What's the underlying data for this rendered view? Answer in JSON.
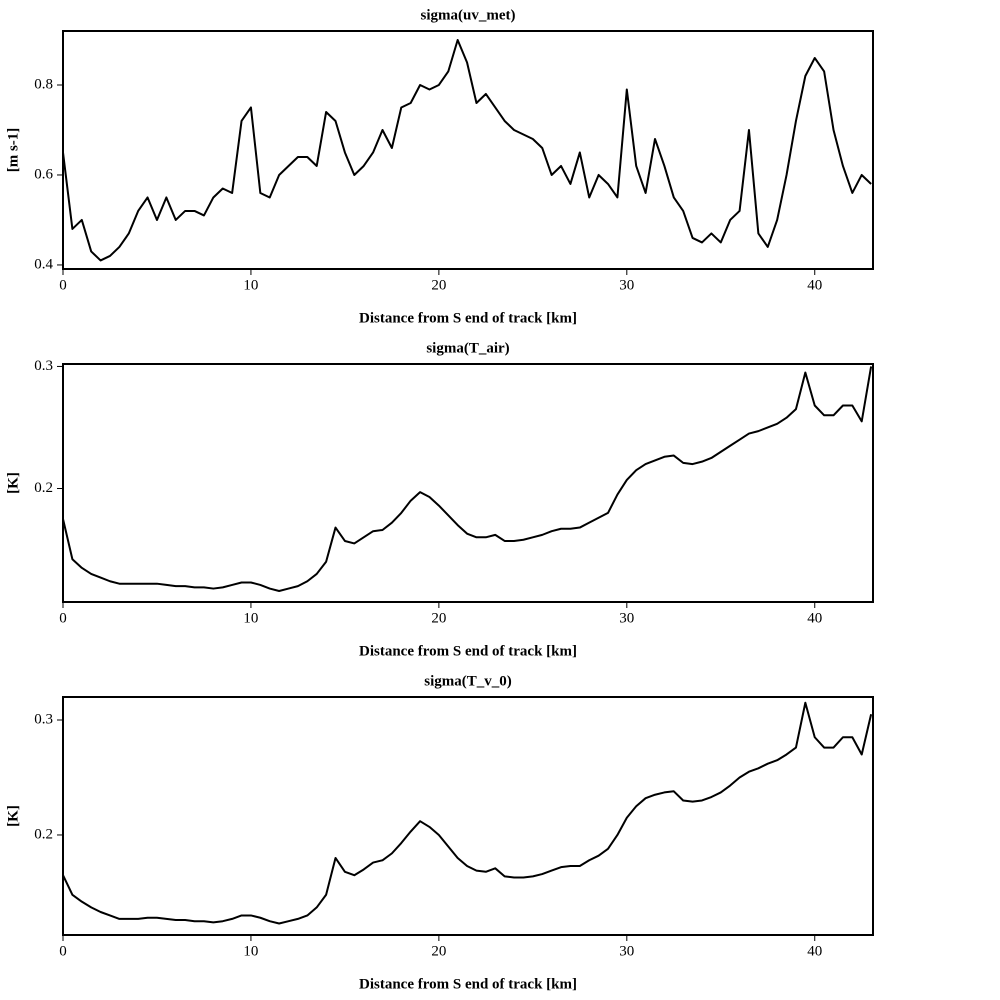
{
  "chart_data": [
    {
      "type": "line",
      "title": "sigma(uv_met)",
      "xlabel": "Distance from S end of track [km]",
      "ylabel": "[m s-1]",
      "color": "#000000",
      "x": [
        0,
        0.5,
        1,
        1.5,
        2,
        2.5,
        3,
        3.5,
        4,
        4.5,
        5,
        5.5,
        6,
        6.5,
        7,
        7.5,
        8,
        8.5,
        9,
        9.5,
        10,
        10.5,
        11,
        11.5,
        12,
        12.5,
        13,
        13.5,
        14,
        14.5,
        15,
        15.5,
        16,
        16.5,
        17,
        17.5,
        18,
        18.5,
        19,
        19.5,
        20,
        20.5,
        21,
        21.5,
        22,
        22.5,
        23,
        23.5,
        24,
        24.5,
        25,
        25.5,
        26,
        26.5,
        27,
        27.5,
        28,
        28.5,
        29,
        29.5,
        30,
        30.5,
        31,
        31.5,
        32,
        32.5,
        33,
        33.5,
        34,
        34.5,
        35,
        35.5,
        36,
        36.5,
        37,
        37.5,
        38,
        38.5,
        39,
        39.5,
        40,
        40.5,
        41,
        41.5,
        42,
        42.5,
        43
      ],
      "values": [
        0.65,
        0.48,
        0.5,
        0.43,
        0.41,
        0.42,
        0.44,
        0.47,
        0.52,
        0.55,
        0.5,
        0.55,
        0.5,
        0.52,
        0.52,
        0.51,
        0.55,
        0.57,
        0.56,
        0.72,
        0.75,
        0.56,
        0.55,
        0.6,
        0.62,
        0.64,
        0.64,
        0.62,
        0.74,
        0.72,
        0.65,
        0.6,
        0.62,
        0.65,
        0.7,
        0.66,
        0.75,
        0.76,
        0.8,
        0.79,
        0.8,
        0.83,
        0.9,
        0.85,
        0.76,
        0.78,
        0.75,
        0.72,
        0.7,
        0.69,
        0.68,
        0.66,
        0.6,
        0.62,
        0.58,
        0.65,
        0.55,
        0.6,
        0.58,
        0.55,
        0.79,
        0.62,
        0.56,
        0.68,
        0.62,
        0.55,
        0.52,
        0.46,
        0.45,
        0.47,
        0.45,
        0.5,
        0.52,
        0.7,
        0.47,
        0.44,
        0.5,
        0.6,
        0.72,
        0.82,
        0.86,
        0.83,
        0.7,
        0.62,
        0.56,
        0.6,
        0.58
      ],
      "xlim": [
        0,
        43.1
      ],
      "ylim": [
        0.391,
        0.92
      ],
      "xticks": [
        0,
        10,
        20,
        30,
        40
      ],
      "yticks": [
        0.4,
        0.6,
        0.8
      ]
    },
    {
      "type": "line",
      "title": "sigma(T_air)",
      "xlabel": "Distance from S end of track [km]",
      "ylabel": "[K]",
      "color": "#000000",
      "x": [
        0,
        0.5,
        1,
        1.5,
        2,
        2.5,
        3,
        3.5,
        4,
        4.5,
        5,
        5.5,
        6,
        6.5,
        7,
        7.5,
        8,
        8.5,
        9,
        9.5,
        10,
        10.5,
        11,
        11.5,
        12,
        12.5,
        13,
        13.5,
        14,
        14.5,
        15,
        15.5,
        16,
        16.5,
        17,
        17.5,
        18,
        18.5,
        19,
        19.5,
        20,
        20.5,
        21,
        21.5,
        22,
        22.5,
        23,
        23.5,
        24,
        24.5,
        25,
        25.5,
        26,
        26.5,
        27,
        27.5,
        28,
        28.5,
        29,
        29.5,
        30,
        30.5,
        31,
        31.5,
        32,
        32.5,
        33,
        33.5,
        34,
        34.5,
        35,
        35.5,
        36,
        36.5,
        37,
        37.5,
        38,
        38.5,
        39,
        39.5,
        40,
        40.5,
        41,
        41.5,
        42,
        42.5,
        43
      ],
      "values": [
        0.175,
        0.142,
        0.135,
        0.13,
        0.127,
        0.124,
        0.122,
        0.122,
        0.122,
        0.122,
        0.122,
        0.121,
        0.12,
        0.12,
        0.119,
        0.119,
        0.118,
        0.119,
        0.121,
        0.123,
        0.123,
        0.121,
        0.118,
        0.116,
        0.118,
        0.12,
        0.124,
        0.13,
        0.14,
        0.168,
        0.157,
        0.155,
        0.16,
        0.165,
        0.166,
        0.172,
        0.18,
        0.19,
        0.197,
        0.193,
        0.186,
        0.178,
        0.17,
        0.163,
        0.16,
        0.16,
        0.162,
        0.157,
        0.157,
        0.158,
        0.16,
        0.162,
        0.165,
        0.167,
        0.167,
        0.168,
        0.172,
        0.176,
        0.18,
        0.195,
        0.207,
        0.215,
        0.22,
        0.223,
        0.226,
        0.227,
        0.221,
        0.22,
        0.222,
        0.225,
        0.23,
        0.235,
        0.24,
        0.245,
        0.247,
        0.25,
        0.253,
        0.258,
        0.265,
        0.295,
        0.268,
        0.26,
        0.26,
        0.268,
        0.268,
        0.255,
        0.3
      ],
      "xlim": [
        0,
        43.1
      ],
      "ylim": [
        0.107,
        0.302
      ],
      "xticks": [
        0,
        10,
        20,
        30,
        40
      ],
      "yticks": [
        0.2,
        0.3
      ]
    },
    {
      "type": "line",
      "title": "sigma(T_v_0)",
      "xlabel": "Distance from S end of track [km]",
      "ylabel": "[K]",
      "color": "#000000",
      "x": [
        0,
        0.5,
        1,
        1.5,
        2,
        2.5,
        3,
        3.5,
        4,
        4.5,
        5,
        5.5,
        6,
        6.5,
        7,
        7.5,
        8,
        8.5,
        9,
        9.5,
        10,
        10.5,
        11,
        11.5,
        12,
        12.5,
        13,
        13.5,
        14,
        14.5,
        15,
        15.5,
        16,
        16.5,
        17,
        17.5,
        18,
        18.5,
        19,
        19.5,
        20,
        20.5,
        21,
        21.5,
        22,
        22.5,
        23,
        23.5,
        24,
        24.5,
        25,
        25.5,
        26,
        26.5,
        27,
        27.5,
        28,
        28.5,
        29,
        29.5,
        30,
        30.5,
        31,
        31.5,
        32,
        32.5,
        33,
        33.5,
        34,
        34.5,
        35,
        35.5,
        36,
        36.5,
        37,
        37.5,
        38,
        38.5,
        39,
        39.5,
        40,
        40.5,
        41,
        41.5,
        42,
        42.5,
        43
      ],
      "values": [
        0.165,
        0.148,
        0.142,
        0.137,
        0.133,
        0.13,
        0.127,
        0.127,
        0.127,
        0.128,
        0.128,
        0.127,
        0.126,
        0.126,
        0.125,
        0.125,
        0.124,
        0.125,
        0.127,
        0.13,
        0.13,
        0.128,
        0.125,
        0.123,
        0.125,
        0.127,
        0.13,
        0.137,
        0.148,
        0.18,
        0.168,
        0.165,
        0.17,
        0.176,
        0.178,
        0.184,
        0.193,
        0.203,
        0.212,
        0.207,
        0.2,
        0.19,
        0.18,
        0.173,
        0.169,
        0.168,
        0.171,
        0.164,
        0.163,
        0.163,
        0.164,
        0.166,
        0.169,
        0.172,
        0.173,
        0.173,
        0.178,
        0.182,
        0.188,
        0.2,
        0.215,
        0.225,
        0.232,
        0.235,
        0.237,
        0.238,
        0.23,
        0.229,
        0.23,
        0.233,
        0.237,
        0.243,
        0.25,
        0.255,
        0.258,
        0.262,
        0.265,
        0.27,
        0.276,
        0.315,
        0.285,
        0.276,
        0.276,
        0.285,
        0.285,
        0.27,
        0.305
      ],
      "xlim": [
        0,
        43.1
      ],
      "ylim": [
        0.113,
        0.32
      ],
      "xticks": [
        0,
        10,
        20,
        30,
        40
      ],
      "yticks": [
        0.2,
        0.3
      ]
    }
  ]
}
